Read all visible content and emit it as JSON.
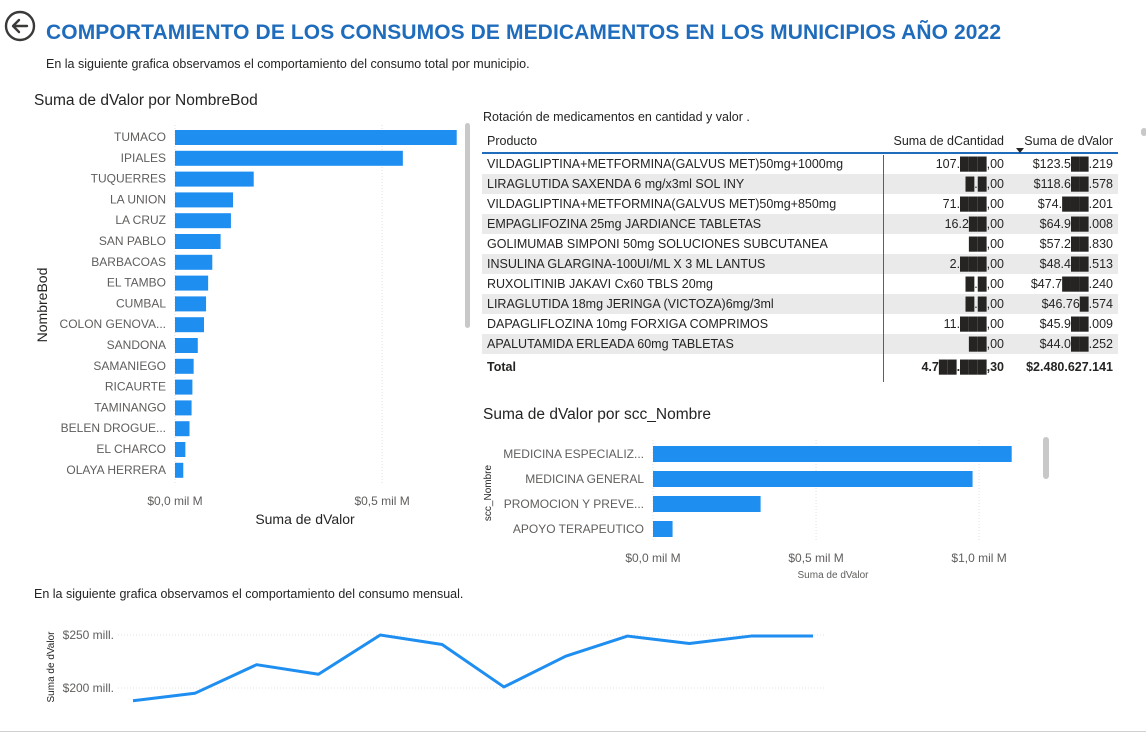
{
  "header": {
    "title": "COMPORTAMIENTO DE LOS CONSUMOS DE MEDICAMENTOS EN LOS MUNICIPIOS AÑO 2022",
    "subtitle": "En la siguiente grafica observamos el comportamiento del consumo total por municipio."
  },
  "icons": {
    "back": "back-arrow-icon",
    "sort": "sort-descending-icon"
  },
  "colors": {
    "accent": "#1f6cbd",
    "bar": "#1f8ef1",
    "line": "#1f8ef1"
  },
  "chart_data": [
    {
      "type": "bar",
      "orientation": "horizontal",
      "title": "Suma de dValor por NombreBod",
      "xlabel": "Suma de dValor",
      "ylabel": "NombreBod",
      "x_ticks": [
        "$0,0 mil M",
        "$0,5 mil M"
      ],
      "xlim": [
        0,
        0.7
      ],
      "grid": true,
      "units": "mil M",
      "categories": [
        "TUMACO",
        "IPIALES",
        "TUQUERRES",
        "LA UNION",
        "LA CRUZ",
        "SAN PABLO",
        "BARBACOAS",
        "EL TAMBO",
        "CUMBAL",
        "COLON GENOVA...",
        "SANDONA",
        "SAMANIEGO",
        "RICAURTE",
        "TAMINANGO",
        "BELEN DROGUE...",
        "EL CHARCO",
        "OLAYA HERRERA"
      ],
      "values": [
        0.68,
        0.55,
        0.19,
        0.14,
        0.135,
        0.11,
        0.09,
        0.08,
        0.075,
        0.07,
        0.055,
        0.045,
        0.042,
        0.04,
        0.035,
        0.025,
        0.02
      ]
    },
    {
      "type": "table",
      "title": "Rotación de medicamentos en cantidad y valor .",
      "columns": [
        "Producto",
        "Suma de dCantidad",
        "Suma de dValor"
      ],
      "rows": [
        [
          "VILDAGLIPTINA+METFORMINA(GALVUS MET)50mg+1000mg",
          "107.███,00",
          "$123.5██.219"
        ],
        [
          "LIRAGLUTIDA SAXENDA 6 mg/x3ml SOL INY",
          "█.█,00",
          "$118.6██.578"
        ],
        [
          "VILDAGLIPTINA+METFORMINA(GALVUS MET)50mg+850mg",
          "71.███,00",
          "$74.███.201"
        ],
        [
          "EMPAGLIFOZINA 25mg JARDIANCE TABLETAS",
          "16.2██,00",
          "$64.9██.008"
        ],
        [
          "GOLIMUMAB SIMPONI 50mg SOLUCIONES SUBCUTANEA",
          "██,00",
          "$57.2██.830"
        ],
        [
          "INSULINA GLARGINA-100UI/ML X 3 ML LANTUS",
          "2.███,00",
          "$48.4██.513"
        ],
        [
          "RUXOLITINIB JAKAVI Cx60 TBLS 20mg",
          "█.█,00",
          "$47.7███.240"
        ],
        [
          "LIRAGLUTIDA 18mg JERINGA (VICTOZA)6mg/3ml",
          "█.█,00",
          "$46.76█.574"
        ],
        [
          "DAPAGLIFLOZINA 10mg FORXIGA COMPRIMOS",
          "11.███,00",
          "$45.9██.009"
        ],
        [
          "APALUTAMIDA ERLEADA 60mg TABLETAS",
          "██,00",
          "$44.0██.252"
        ]
      ],
      "total": [
        "Total",
        "4.7██.███,30",
        "$2.480.627.141"
      ]
    },
    {
      "type": "bar",
      "orientation": "horizontal",
      "title": "Suma de dValor por scc_Nombre",
      "xlabel": "Suma de dValor",
      "ylabel": "scc_Nombre",
      "x_ticks": [
        "$0,0 mil M",
        "$0,5 mil M",
        "$1,0 mil M"
      ],
      "xlim": [
        0,
        1.15
      ],
      "grid": true,
      "units": "mil M",
      "categories": [
        "MEDICINA ESPECIALIZ...",
        "MEDICINA GENERAL",
        "PROMOCION Y PREVE...",
        "APOYO TERAPEUTICO"
      ],
      "values": [
        1.1,
        0.98,
        0.33,
        0.06
      ]
    },
    {
      "type": "line",
      "title": "En la siguiente grafica observamos el comportamiento del consumo mensual.",
      "ylabel": "Suma de dValor",
      "y_ticks": [
        "$250 mill.",
        "$200 mill."
      ],
      "ylim": [
        185,
        255
      ],
      "grid": true,
      "units": "mill.",
      "x": [
        1,
        2,
        3,
        4,
        5,
        6,
        7,
        8,
        9,
        10,
        11,
        12
      ],
      "values": [
        188,
        195,
        222,
        213,
        250,
        241,
        201,
        230,
        249,
        242,
        249,
        249
      ]
    }
  ]
}
